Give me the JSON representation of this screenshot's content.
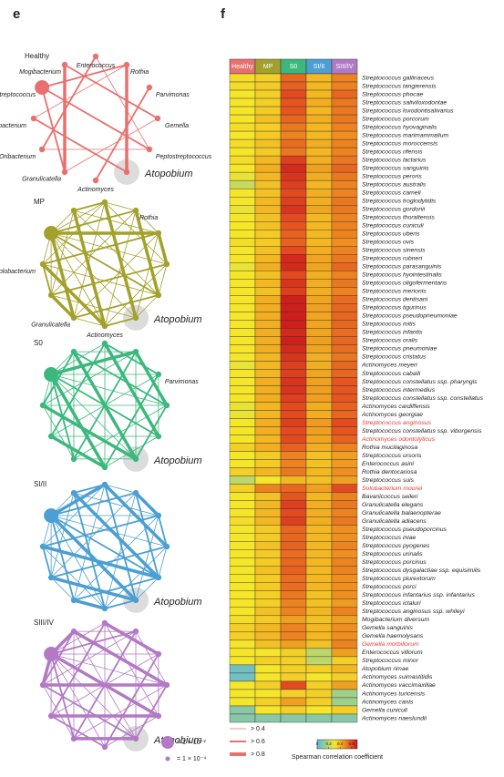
{
  "panel_e": {
    "label": "e",
    "networks": [
      {
        "name": "Healthy",
        "color": "#e8716f",
        "nodes": [
          "Streptococcus",
          "Mogibacterium",
          "Enterococcus",
          "Rothia",
          "Parvimonas",
          "Gemella",
          "Peptostreptococcus",
          "Atopobium",
          "Actinomyces",
          "Granulicatella",
          "Oribacterium",
          "Solobacterium"
        ]
      },
      {
        "name": "MP",
        "color": "#a3a12c",
        "nodes": [
          null,
          null,
          null,
          "Rothia",
          null,
          null,
          null,
          "Atopobium",
          "Actinomyces",
          "Granulicatella",
          null,
          "Solobacterium"
        ]
      },
      {
        "name": "S0",
        "color": "#3cb87e",
        "nodes": [
          null,
          null,
          null,
          null,
          "Parvimonas",
          null,
          null,
          "Atopobium",
          null,
          null,
          null,
          null
        ]
      },
      {
        "name": "SI/II",
        "color": "#4b9fd3",
        "nodes": [
          null,
          null,
          null,
          null,
          null,
          null,
          null,
          "Atopobium",
          null,
          null,
          null,
          null
        ]
      },
      {
        "name": "SIII/IV",
        "color": "#b27ac4",
        "nodes": [
          null,
          null,
          null,
          null,
          null,
          null,
          null,
          "Atopobium",
          null,
          null,
          null,
          null
        ]
      }
    ],
    "edge_legend": [
      "> 0.4",
      "> 0.6",
      "> 0.8"
    ],
    "size_legend": [
      "= 1 × 10⁻²",
      "= 1 × 10⁻⁴"
    ]
  },
  "chart_data": {
    "type": "heatmap",
    "panel_label": "f",
    "columns": [
      "Healthy",
      "MP",
      "S0",
      "SI/II",
      "SIII/IV"
    ],
    "column_colors": [
      "#e8716f",
      "#a3a12c",
      "#3cb87e",
      "#4b9fd3",
      "#b27ac4"
    ],
    "rows": [
      "Streptococcus gallinaceus",
      "Streptococcus tangierensis",
      "Streptococcus phocae",
      "Streptococcus salivilоxodontae",
      "Streptococcus loxodontisalivarius",
      "Streptococcus porcorum",
      "Streptococcus hyovaginalis",
      "Streptococcus marimammalium",
      "Streptococcus moroccensis",
      "Streptococcus rifensis",
      "Streptococcus lactarius",
      "Streptococcus sanguinis",
      "Streptococcus peroris",
      "Streptococcus australis",
      "Streptococcus cameli",
      "Streptococcus troglodytidis",
      "Streptococcus gordonii",
      "Streptococcus thoraltensis",
      "Streptococcus cuniculi",
      "Streptococcus uberis",
      "Streptococcus ovis",
      "Streptococcus sinensis",
      "Streptococcus rubneri",
      "Streptococcus parasanguinis",
      "Streptococcus hyointestinalis",
      "Streptococcus oligofermentans",
      "Streptococcus merionis",
      "Streptococcus dentisani",
      "Streptococcus tigurinus",
      "Streptococcus pseudopneumoniae",
      "Streptococcus mitis",
      "Streptococcus infantis",
      "Streptococcus oralis",
      "Streptococcus pneumoniae",
      "Streptococcus cristatus",
      "Actinomyces meyeri",
      "Streptococcus caballi",
      "Streptococcus constellatus ssp. pharyngis",
      "Streptococcus intermedius",
      "Streptococcus constellatus ssp. constellatus",
      "Actinomyces cardiffensis",
      "Actinomyces georgiae",
      "Streptococcus anginosus",
      "Streptococcus constellatus ssp. viborgensis",
      "Actinomyces odontolyticus",
      "Rothia mucilaginosa",
      "Streptococcus ursoris",
      "Enterococcus asini",
      "Rothia dentocariosa",
      "Streptococcus suis",
      "Solobacterium moorei",
      "Bavariicoccus seileri",
      "Granulicatella elegans",
      "Granulicatella balaenopterae",
      "Granulicatella adiacens",
      "Streptococcus pseudoporcinus",
      "Streptococcus iniae",
      "Streptococcus pyogenes",
      "Streptococcus urinalis",
      "Streptococcus porcinus",
      "Streptococcus dysgalactiae ssp. equisimilis",
      "Streptococcus plurextorum",
      "Streptococcus porci",
      "Streptococcus infantarius ssp. infantarius",
      "Streptococcus ictaluri",
      "Streptococcus anginosus ssp. whileyi",
      "Mogibacterium diversum",
      "Gemella sanguinis",
      "Gemella haemolysans",
      "Gemella morbillorum",
      "Enterococcus villorum",
      "Streptococcus minor",
      "Atopobium rimae",
      "Actinomyces suimastitidis",
      "Actinomyces vaccimaxillae",
      "Actinomyces turicensis",
      "Actinomyces canis",
      "Gemella cuniculi",
      "Actinomyces naeslundii"
    ],
    "row_label_color": "#222222",
    "highlight_color": "#e53935",
    "highlighted_rows": [
      42,
      44,
      50,
      69
    ],
    "values": [
      [
        0.32,
        0.35,
        0.55,
        0.4,
        0.5
      ],
      [
        0.32,
        0.36,
        0.56,
        0.4,
        0.5
      ],
      [
        0.3,
        0.35,
        0.6,
        0.4,
        0.55
      ],
      [
        0.3,
        0.35,
        0.58,
        0.42,
        0.52
      ],
      [
        0.3,
        0.36,
        0.58,
        0.4,
        0.52
      ],
      [
        0.3,
        0.38,
        0.55,
        0.42,
        0.52
      ],
      [
        0.32,
        0.35,
        0.52,
        0.4,
        0.5
      ],
      [
        0.3,
        0.36,
        0.5,
        0.4,
        0.48
      ],
      [
        0.32,
        0.38,
        0.54,
        0.42,
        0.5
      ],
      [
        0.3,
        0.36,
        0.52,
        0.4,
        0.5
      ],
      [
        0.32,
        0.4,
        0.62,
        0.42,
        0.52
      ],
      [
        0.3,
        0.42,
        0.66,
        0.45,
        0.55
      ],
      [
        0.28,
        0.4,
        0.64,
        0.42,
        0.52
      ],
      [
        0.22,
        0.38,
        0.62,
        0.4,
        0.5
      ],
      [
        0.3,
        0.38,
        0.6,
        0.42,
        0.5
      ],
      [
        0.3,
        0.4,
        0.62,
        0.42,
        0.52
      ],
      [
        0.28,
        0.4,
        0.64,
        0.44,
        0.52
      ],
      [
        0.3,
        0.38,
        0.6,
        0.4,
        0.5
      ],
      [
        0.3,
        0.38,
        0.58,
        0.4,
        0.5
      ],
      [
        0.3,
        0.36,
        0.56,
        0.4,
        0.5
      ],
      [
        0.32,
        0.36,
        0.56,
        0.4,
        0.48
      ],
      [
        0.3,
        0.38,
        0.6,
        0.42,
        0.5
      ],
      [
        0.3,
        0.4,
        0.66,
        0.44,
        0.52
      ],
      [
        0.28,
        0.42,
        0.66,
        0.44,
        0.55
      ],
      [
        0.3,
        0.38,
        0.6,
        0.42,
        0.5
      ],
      [
        0.3,
        0.4,
        0.64,
        0.42,
        0.52
      ],
      [
        0.3,
        0.38,
        0.62,
        0.42,
        0.5
      ],
      [
        0.3,
        0.42,
        0.68,
        0.44,
        0.54
      ],
      [
        0.3,
        0.42,
        0.68,
        0.45,
        0.55
      ],
      [
        0.3,
        0.42,
        0.68,
        0.44,
        0.55
      ],
      [
        0.3,
        0.42,
        0.68,
        0.44,
        0.55
      ],
      [
        0.3,
        0.42,
        0.66,
        0.44,
        0.54
      ],
      [
        0.3,
        0.42,
        0.68,
        0.45,
        0.55
      ],
      [
        0.3,
        0.42,
        0.66,
        0.44,
        0.54
      ],
      [
        0.3,
        0.4,
        0.64,
        0.42,
        0.52
      ],
      [
        0.28,
        0.4,
        0.62,
        0.42,
        0.55
      ],
      [
        0.3,
        0.4,
        0.62,
        0.44,
        0.55
      ],
      [
        0.3,
        0.42,
        0.64,
        0.45,
        0.58
      ],
      [
        0.3,
        0.42,
        0.64,
        0.45,
        0.58
      ],
      [
        0.3,
        0.42,
        0.62,
        0.45,
        0.58
      ],
      [
        0.28,
        0.4,
        0.6,
        0.42,
        0.56
      ],
      [
        0.28,
        0.4,
        0.6,
        0.42,
        0.55
      ],
      [
        0.3,
        0.42,
        0.62,
        0.46,
        0.6
      ],
      [
        0.3,
        0.42,
        0.6,
        0.45,
        0.58
      ],
      [
        0.3,
        0.4,
        0.6,
        0.44,
        0.56
      ],
      [
        0.35,
        0.42,
        0.56,
        0.42,
        0.5
      ],
      [
        0.3,
        0.36,
        0.5,
        0.38,
        0.45
      ],
      [
        0.3,
        0.36,
        0.5,
        0.38,
        0.46
      ],
      [
        0.35,
        0.4,
        0.52,
        0.4,
        0.48
      ],
      [
        0.2,
        0.3,
        0.4,
        0.38,
        0.45
      ],
      [
        0.35,
        0.5,
        0.55,
        0.45,
        0.6
      ],
      [
        0.3,
        0.38,
        0.58,
        0.4,
        0.5
      ],
      [
        0.3,
        0.4,
        0.62,
        0.42,
        0.52
      ],
      [
        0.3,
        0.4,
        0.6,
        0.42,
        0.5
      ],
      [
        0.32,
        0.4,
        0.62,
        0.42,
        0.52
      ],
      [
        0.3,
        0.36,
        0.55,
        0.4,
        0.48
      ],
      [
        0.3,
        0.36,
        0.55,
        0.4,
        0.48
      ],
      [
        0.3,
        0.38,
        0.56,
        0.4,
        0.5
      ],
      [
        0.3,
        0.36,
        0.54,
        0.4,
        0.48
      ],
      [
        0.3,
        0.36,
        0.55,
        0.4,
        0.5
      ],
      [
        0.3,
        0.38,
        0.56,
        0.4,
        0.5
      ],
      [
        0.3,
        0.36,
        0.54,
        0.4,
        0.48
      ],
      [
        0.3,
        0.36,
        0.54,
        0.4,
        0.48
      ],
      [
        0.3,
        0.35,
        0.52,
        0.38,
        0.48
      ],
      [
        0.3,
        0.35,
        0.5,
        0.38,
        0.46
      ],
      [
        0.3,
        0.38,
        0.5,
        0.4,
        0.5
      ],
      [
        0.32,
        0.36,
        0.45,
        0.38,
        0.45
      ],
      [
        0.35,
        0.4,
        0.5,
        0.4,
        0.48
      ],
      [
        0.35,
        0.4,
        0.5,
        0.4,
        0.48
      ],
      [
        0.3,
        0.38,
        0.45,
        0.38,
        0.5
      ],
      [
        0.3,
        0.3,
        0.35,
        0.2,
        0.45
      ],
      [
        0.3,
        0.35,
        0.35,
        0.2,
        0.35
      ],
      [
        0.05,
        0.3,
        0.35,
        0.35,
        0.4
      ],
      [
        0.05,
        0.3,
        0.35,
        0.3,
        0.35
      ],
      [
        0.3,
        0.35,
        0.6,
        0.35,
        0.45
      ],
      [
        0.3,
        0.3,
        0.35,
        0.35,
        0.15
      ],
      [
        0.3,
        0.35,
        0.45,
        0.35,
        0.15
      ],
      [
        0.1,
        0.3,
        0.35,
        0.3,
        0.35
      ],
      [
        0.1,
        0.1,
        0.1,
        0.1,
        0.1
      ]
    ],
    "clim": [
      0,
      0.7
    ],
    "colorbar_ticks": [
      0,
      0.2,
      0.4,
      0.6
    ],
    "colorbar_label": "Spearman correlation coefficient"
  }
}
